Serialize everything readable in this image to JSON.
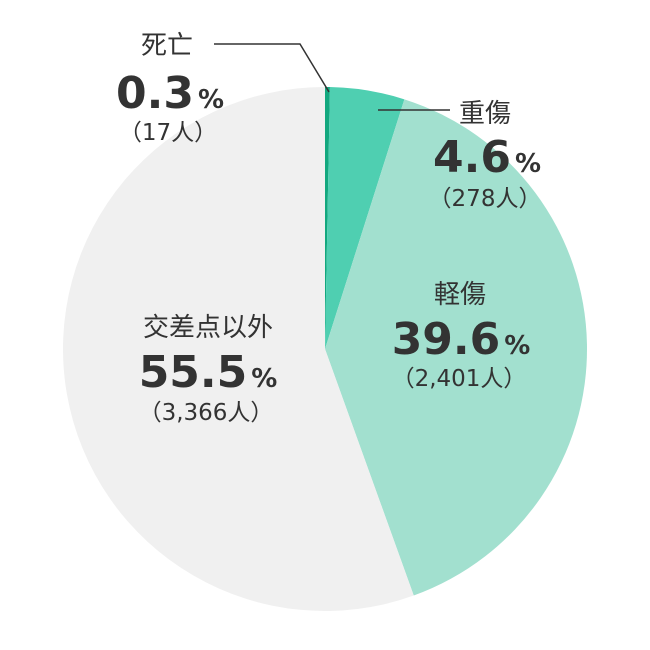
{
  "chart_data": {
    "type": "pie",
    "title": "",
    "start": "top",
    "direction": "clockwise",
    "slices": [
      {
        "name": "死亡",
        "percent": 0.3,
        "percent_label": "0.3",
        "count_label": "（17人）",
        "color": "#13a87f"
      },
      {
        "name": "重傷",
        "percent": 4.6,
        "percent_label": "4.6",
        "count_label": "（278人）",
        "color": "#4fcfb1"
      },
      {
        "name": "軽傷",
        "percent": 39.6,
        "percent_label": "39.6",
        "count_label": "（2,401人）",
        "color": "#a2e0cf"
      },
      {
        "name": "交差点以外",
        "percent": 55.5,
        "percent_label": "55.5",
        "count_label": "（3,366人）",
        "color": "#f0f0f0"
      }
    ],
    "unit": "%"
  }
}
